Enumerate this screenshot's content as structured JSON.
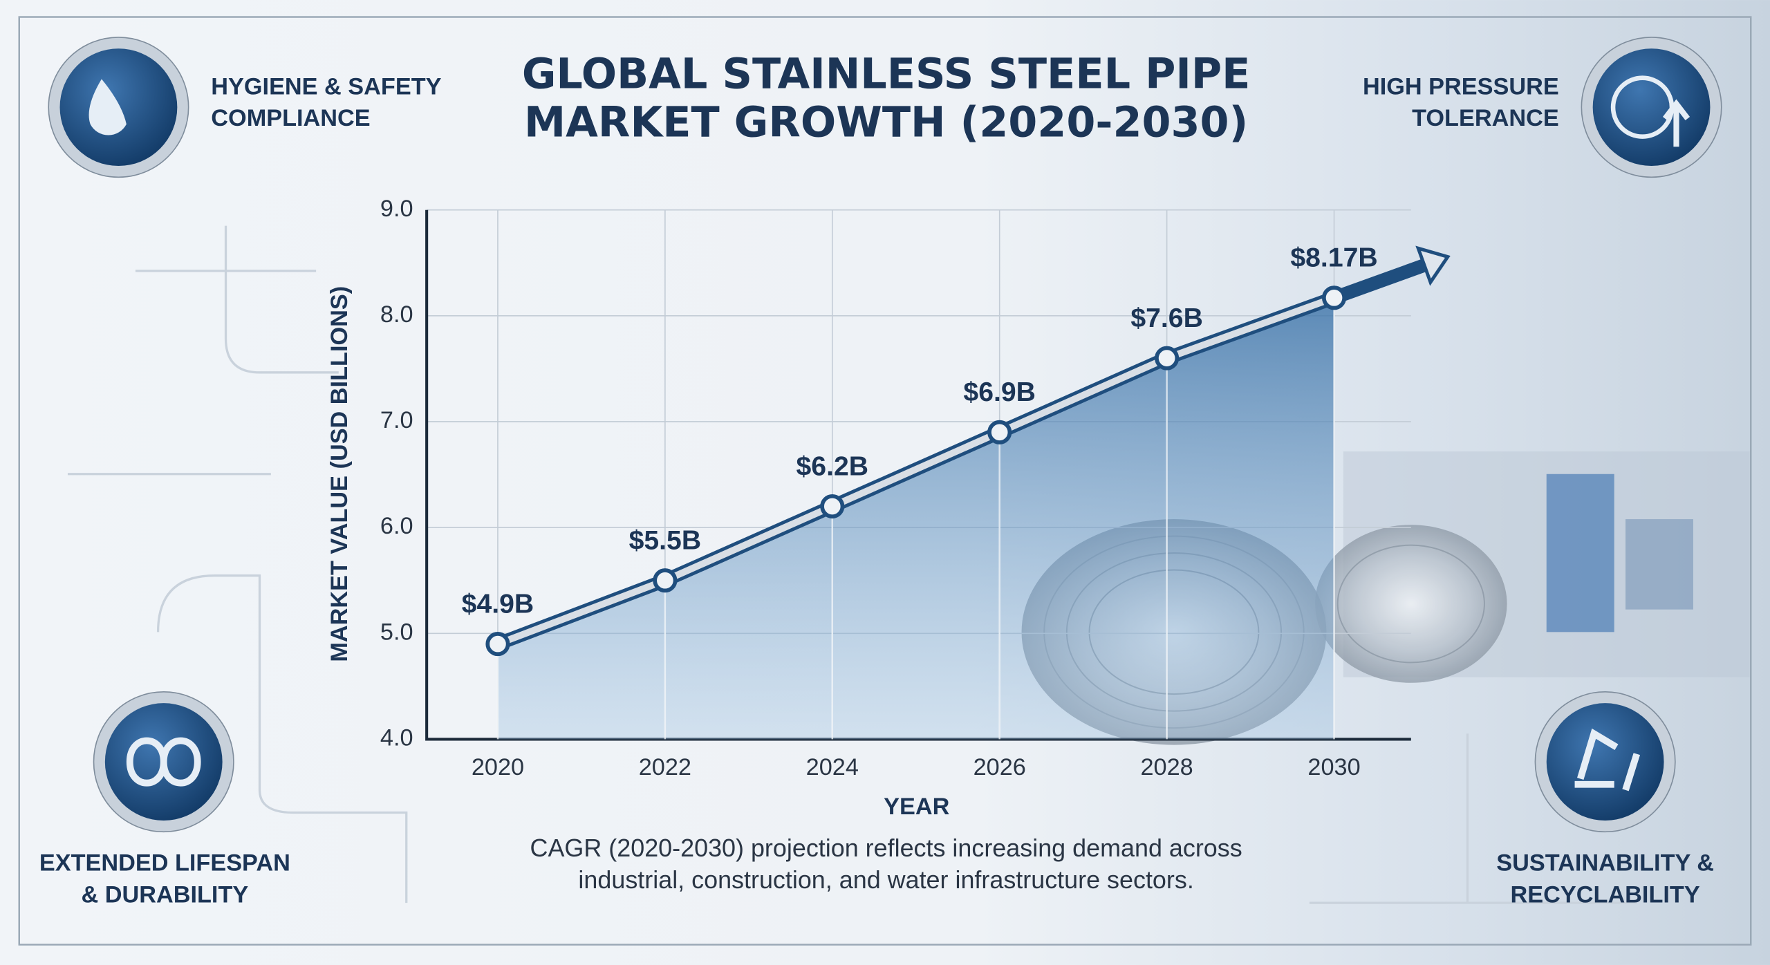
{
  "chart_data": {
    "type": "line",
    "title": "GLOBAL STAINLESS STEEL PIPE MARKET GROWTH (2020-2030)",
    "x_label": "YEAR",
    "y_label": "MARKET VALUE (USD BILLIONS)",
    "x": [
      2020,
      2022,
      2024,
      2026,
      2028,
      2030
    ],
    "values": [
      4.9,
      5.5,
      6.2,
      6.9,
      7.6,
      8.17
    ],
    "value_labels": [
      "$4.9B",
      "$5.5B",
      "$6.2B",
      "$6.9B",
      "$7.6B",
      "$8.17B"
    ],
    "color": "#1f4e7e",
    "xlim": [
      2019.15,
      2030.92
    ],
    "xticks": [
      2020,
      2022,
      2024,
      2026,
      2028,
      2030
    ],
    "ylim": [
      4,
      9
    ],
    "yticks": [
      {
        "value": 4,
        "label": "4.0"
      },
      {
        "value": 5,
        "label": "5.0"
      },
      {
        "value": 6,
        "label": "6.0"
      },
      {
        "value": 7,
        "label": "7.0"
      },
      {
        "value": 8,
        "label": "8.0"
      },
      {
        "value": 9,
        "label": "9.0"
      }
    ],
    "grid": true,
    "annotations": [
      [
        "HYGIENE & SAFETY",
        "COMPLIANCE"
      ],
      [
        "HIGH PRESSURE",
        "TOLERANCE"
      ],
      [
        "EXTENDED LIFESPAN",
        "& DURABILITY"
      ],
      [
        "SUSTAINABILITY &",
        "RECYCLABILITY"
      ]
    ],
    "note": "CAGR (2020-2030) projection reflects increasing demand across industrial, construction, and water infrastructure sectors."
  }
}
